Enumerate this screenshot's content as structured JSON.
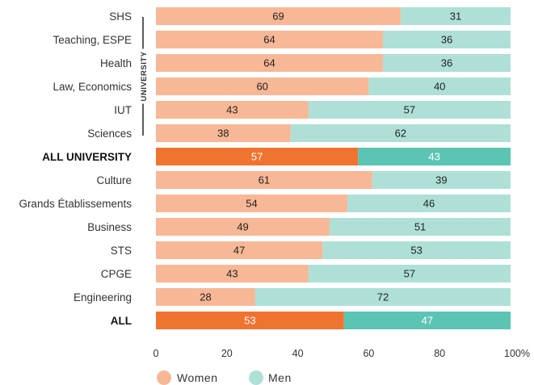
{
  "colors": {
    "women": "#f8b896",
    "men": "#aee0d8",
    "women_highlight": "#f07330",
    "men_highlight": "#5cc4b3"
  },
  "chart_data": {
    "type": "bar",
    "orientation": "horizontal",
    "stacked": true,
    "categories": [
      "SHS",
      "Teaching, ESPE",
      "Health",
      "Law, Economics",
      "IUT",
      "Sciences",
      "ALL UNIVERSITY",
      "Culture",
      "Grands Établissements",
      "Business",
      "STS",
      "CPGE",
      "Engineering",
      "ALL"
    ],
    "highlighted": [
      "ALL UNIVERSITY",
      "ALL"
    ],
    "series": [
      {
        "name": "Women",
        "values": [
          69,
          64,
          64,
          60,
          43,
          38,
          57,
          61,
          54,
          49,
          47,
          43,
          28,
          53
        ]
      },
      {
        "name": "Men",
        "values": [
          31,
          36,
          36,
          40,
          57,
          62,
          43,
          39,
          46,
          51,
          53,
          57,
          72,
          47
        ]
      }
    ],
    "group_label": "UNIVERSITY",
    "xlim": [
      0,
      100
    ],
    "x_ticks": [
      "0",
      "20",
      "40",
      "60",
      "80",
      "100%"
    ],
    "legend_placement": "bottom-left",
    "grid": false
  }
}
